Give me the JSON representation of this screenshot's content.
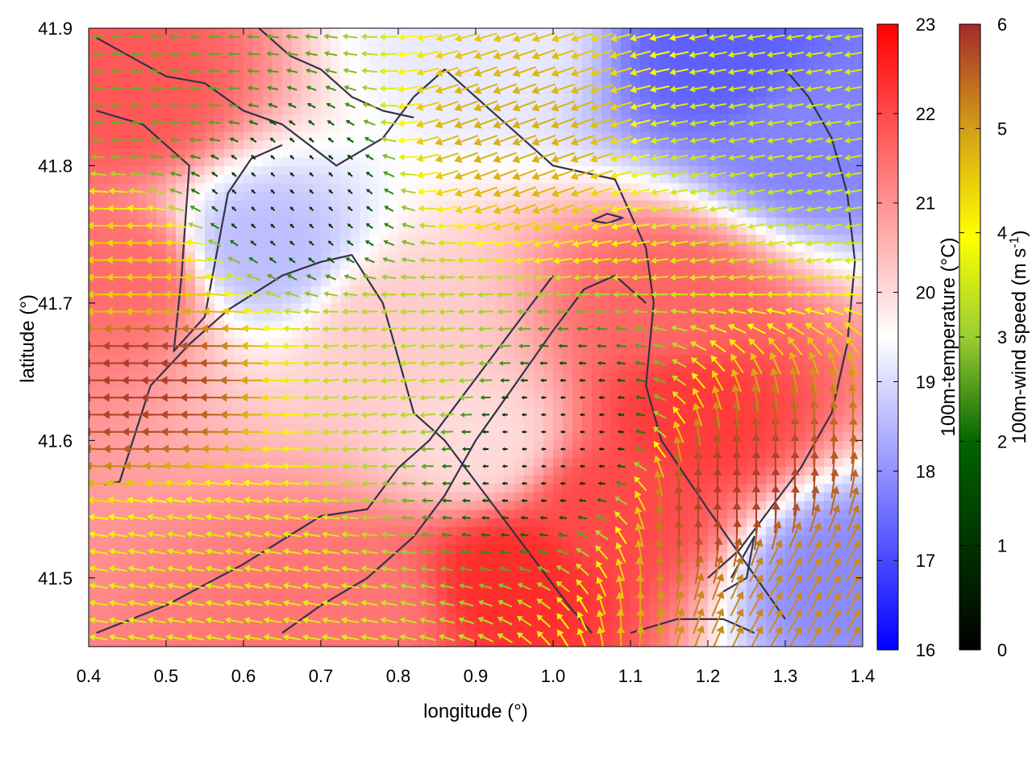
{
  "chart_data": {
    "type": "heatmap",
    "title": "",
    "xlabel": "longitude (°)",
    "ylabel": "latitude (°)",
    "xlim": [
      0.4,
      1.4
    ],
    "ylim": [
      41.45,
      41.9
    ],
    "xticks": [
      "0.4",
      "0.5",
      "0.6",
      "0.7",
      "0.8",
      "0.9",
      "1.0",
      "1.1",
      "1.2",
      "1.3",
      "1.4"
    ],
    "yticks": [
      "41.5",
      "41.6",
      "41.7",
      "41.8",
      "41.9"
    ],
    "colorbars": [
      {
        "label": "100m-temperature (°C)",
        "range": [
          16,
          23
        ],
        "ticks": [
          "16",
          "17",
          "18",
          "19",
          "20",
          "21",
          "22",
          "23"
        ],
        "colors": [
          "#0000ff",
          "#ffffff",
          "#ff0000"
        ]
      },
      {
        "label": "100m-wind speed (m s",
        "label_sup": "-1",
        "label_end": ")",
        "range": [
          0,
          6
        ],
        "ticks": [
          "0",
          "1",
          "2",
          "3",
          "4",
          "5",
          "6"
        ],
        "colors": [
          "#000000",
          "#006400",
          "#9acd32",
          "#ffff00",
          "#d4a017",
          "#a52a2a"
        ]
      }
    ],
    "temperature_hotspots": [
      {
        "lon": 0.45,
        "lat": 41.85,
        "temp": 21.8
      },
      {
        "lon": 0.45,
        "lat": 41.72,
        "temp": 21.5
      },
      {
        "lon": 0.95,
        "lat": 41.5,
        "temp": 22.4
      },
      {
        "lon": 1.08,
        "lat": 41.55,
        "temp": 22.0
      },
      {
        "lon": 1.18,
        "lat": 41.62,
        "temp": 22.2
      },
      {
        "lon": 1.15,
        "lat": 41.7,
        "temp": 21.6
      },
      {
        "lon": 0.75,
        "lat": 41.48,
        "temp": 21.4
      },
      {
        "lon": 0.62,
        "lat": 41.74,
        "temp": 18.6
      },
      {
        "lon": 0.92,
        "lat": 41.89,
        "temp": 19.2
      },
      {
        "lon": 1.22,
        "lat": 41.88,
        "temp": 17.3
      },
      {
        "lon": 1.33,
        "lat": 41.82,
        "temp": 17.8
      },
      {
        "lon": 1.38,
        "lat": 41.5,
        "temp": 17.9
      },
      {
        "lon": 0.8,
        "lat": 41.68,
        "temp": 20.2
      },
      {
        "lon": 0.9,
        "lat": 41.6,
        "temp": 20.0
      }
    ],
    "wind_field": {
      "grid_step_lon": 0.025,
      "grid_step_lat": 0.0125,
      "regions": [
        {
          "lon": 0.47,
          "lat": 41.65,
          "speed": 5.8,
          "direction_deg": 180
        },
        {
          "lon": 0.45,
          "lat": 41.72,
          "speed": 4.2,
          "direction_deg": 180
        },
        {
          "lon": 1.24,
          "lat": 41.56,
          "speed": 5.8,
          "direction_deg": 90
        },
        {
          "lon": 1.33,
          "lat": 41.5,
          "speed": 5.0,
          "direction_deg": 60
        },
        {
          "lon": 0.95,
          "lat": 41.82,
          "speed": 4.6,
          "direction_deg": 200
        },
        {
          "lon": 0.65,
          "lat": 41.78,
          "speed": 0.5,
          "direction_deg": 135
        },
        {
          "lon": 1.0,
          "lat": 41.6,
          "speed": 0.4,
          "direction_deg": 180
        },
        {
          "lon": 0.8,
          "lat": 41.65,
          "speed": 2.8,
          "direction_deg": 185
        },
        {
          "lon": 1.25,
          "lat": 41.8,
          "speed": 3.0,
          "direction_deg": 190
        },
        {
          "lon": 0.5,
          "lat": 41.85,
          "speed": 2.0,
          "direction_deg": 180
        },
        {
          "lon": 0.55,
          "lat": 41.5,
          "speed": 3.2,
          "direction_deg": 170
        }
      ]
    },
    "coastline_paths": [
      [
        [
          0.41,
          41.893
        ],
        [
          0.5,
          41.865
        ],
        [
          0.55,
          41.86
        ],
        [
          0.6,
          41.84
        ],
        [
          0.65,
          41.83
        ],
        [
          0.72,
          41.8
        ],
        [
          0.78,
          41.82
        ],
        [
          0.82,
          41.85
        ],
        [
          0.86,
          41.87
        ],
        [
          0.92,
          41.84
        ],
        [
          1.0,
          41.8
        ],
        [
          1.08,
          41.79
        ],
        [
          1.12,
          41.74
        ],
        [
          1.13,
          41.7
        ],
        [
          1.12,
          41.64
        ],
        [
          1.14,
          41.6
        ],
        [
          1.2,
          41.55
        ],
        [
          1.25,
          41.51
        ],
        [
          1.3,
          41.47
        ]
      ],
      [
        [
          0.41,
          41.84
        ],
        [
          0.47,
          41.83
        ],
        [
          0.53,
          41.8
        ],
        [
          0.52,
          41.72
        ],
        [
          0.51,
          41.665
        ],
        [
          0.55,
          41.69
        ],
        [
          0.58,
          41.78
        ],
        [
          0.61,
          41.805
        ],
        [
          0.65,
          41.815
        ]
      ],
      [
        [
          0.42,
          41.568
        ],
        [
          0.44,
          41.57
        ],
        [
          0.48,
          41.64
        ],
        [
          0.53,
          41.67
        ],
        [
          0.58,
          41.695
        ],
        [
          0.65,
          41.72
        ],
        [
          0.7,
          41.73
        ],
        [
          0.74,
          41.735
        ],
        [
          0.78,
          41.7
        ],
        [
          0.8,
          41.66
        ],
        [
          0.82,
          41.62
        ],
        [
          0.86,
          41.6
        ],
        [
          0.9,
          41.57
        ],
        [
          0.94,
          41.54
        ],
        [
          0.98,
          41.51
        ],
        [
          1.02,
          41.48
        ],
        [
          1.05,
          41.46
        ]
      ],
      [
        [
          0.65,
          41.46
        ],
        [
          0.7,
          41.48
        ],
        [
          0.76,
          41.5
        ],
        [
          0.82,
          41.53
        ],
        [
          0.86,
          41.56
        ],
        [
          0.9,
          41.6
        ],
        [
          0.95,
          41.64
        ],
        [
          1.0,
          41.68
        ],
        [
          1.04,
          41.71
        ],
        [
          1.08,
          41.72
        ],
        [
          1.12,
          41.7
        ]
      ],
      [
        [
          0.62,
          41.9
        ],
        [
          0.66,
          41.88
        ],
        [
          0.7,
          41.87
        ],
        [
          0.74,
          41.85
        ],
        [
          0.78,
          41.84
        ],
        [
          0.82,
          41.835
        ]
      ],
      [
        [
          1.3,
          41.87
        ],
        [
          1.33,
          41.85
        ],
        [
          1.36,
          41.82
        ],
        [
          1.38,
          41.78
        ],
        [
          1.39,
          41.73
        ],
        [
          1.38,
          41.67
        ],
        [
          1.36,
          41.62
        ],
        [
          1.32,
          41.58
        ],
        [
          1.28,
          41.55
        ],
        [
          1.24,
          41.52
        ],
        [
          1.2,
          41.5
        ]
      ],
      [
        [
          0.41,
          41.46
        ],
        [
          0.5,
          41.48
        ],
        [
          0.6,
          41.51
        ],
        [
          0.7,
          41.545
        ],
        [
          0.76,
          41.55
        ],
        [
          0.8,
          41.58
        ],
        [
          0.84,
          41.6
        ],
        [
          0.88,
          41.63
        ],
        [
          0.92,
          41.66
        ],
        [
          0.96,
          41.69
        ],
        [
          1.0,
          41.72
        ]
      ],
      [
        [
          1.1,
          41.46
        ],
        [
          1.16,
          41.47
        ],
        [
          1.22,
          41.47
        ],
        [
          1.26,
          41.46
        ]
      ],
      [
        [
          1.23,
          41.5
        ],
        [
          1.25,
          41.52
        ],
        [
          1.26,
          41.53
        ],
        [
          1.25,
          41.5
        ],
        [
          1.22,
          41.49
        ]
      ],
      [
        [
          1.05,
          41.76
        ],
        [
          1.07,
          41.765
        ],
        [
          1.09,
          41.762
        ],
        [
          1.07,
          41.758
        ],
        [
          1.05,
          41.76
        ]
      ]
    ]
  }
}
